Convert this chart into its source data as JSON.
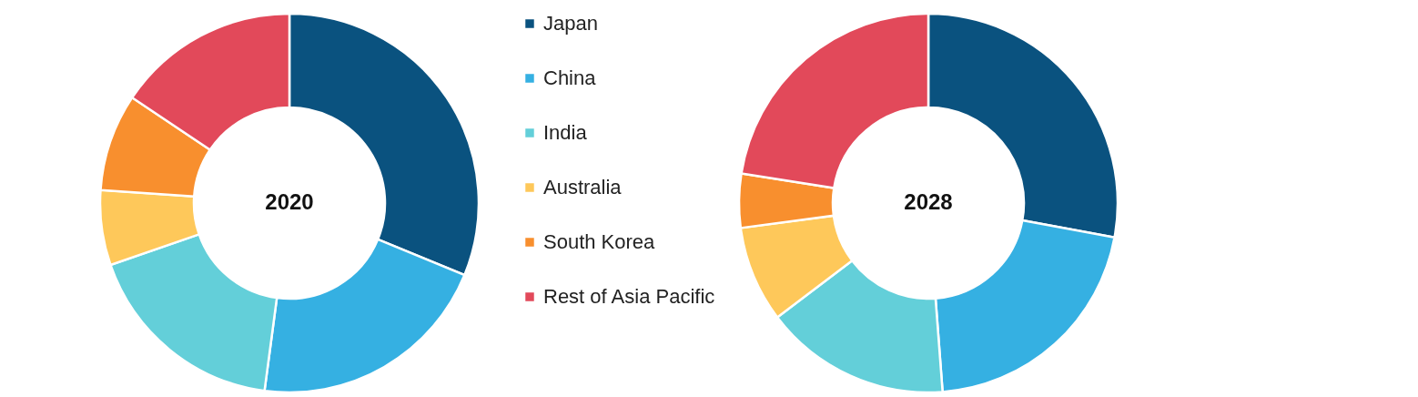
{
  "chart_data": [
    {
      "type": "donut",
      "title": "2020",
      "legend": "right",
      "categories": [
        "Japan",
        "China",
        "India",
        "Australia",
        "South Korea",
        "Rest of Asia Pacific"
      ],
      "values": [
        31.2,
        20.9,
        17.6,
        6.4,
        8.3,
        15.6
      ],
      "colors": [
        "#0a527f",
        "#35b0e2",
        "#63cfd9",
        "#fec85a",
        "#f88f2e",
        "#e2495a"
      ]
    },
    {
      "type": "donut",
      "title": "2028",
      "categories": [
        null,
        null,
        null,
        null,
        null,
        null
      ],
      "values": [
        27.9,
        20.9,
        15.9,
        8.2,
        4.6,
        22.5
      ],
      "colors": [
        "#0a527f",
        "#35b0e2",
        "#63cfd9",
        "#fec85a",
        "#f88f2e",
        "#e2495a"
      ]
    }
  ]
}
